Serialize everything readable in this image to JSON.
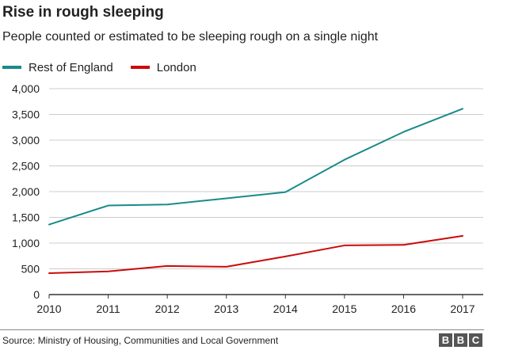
{
  "title": "Rise in rough sleeping",
  "subtitle": "People counted or estimated to be sleeping rough on a single night",
  "source": "Source: Ministry of Housing, Communities and Local Government",
  "logo": [
    "B",
    "B",
    "C"
  ],
  "colors": {
    "rest_of_england": "#1a8a8a",
    "london": "#cc0a0a",
    "grid": "#cccccc",
    "axis": "#333333"
  },
  "chart_data": {
    "type": "line",
    "x": [
      "2010",
      "2011",
      "2012",
      "2013",
      "2014",
      "2015",
      "2016",
      "2017"
    ],
    "y_ticks": [
      "0",
      "500",
      "1,000",
      "1,500",
      "2,000",
      "2,500",
      "3,000",
      "3,500",
      "4,000"
    ],
    "ylim": [
      0,
      4000
    ],
    "grid": true,
    "legend": "top-left",
    "series": [
      {
        "name": "Rest of England",
        "values": [
          1360,
          1730,
          1750,
          1870,
          1990,
          2620,
          3160,
          3610
        ]
      },
      {
        "name": "London",
        "values": [
          415,
          450,
          555,
          540,
          740,
          955,
          965,
          1140
        ]
      }
    ]
  }
}
